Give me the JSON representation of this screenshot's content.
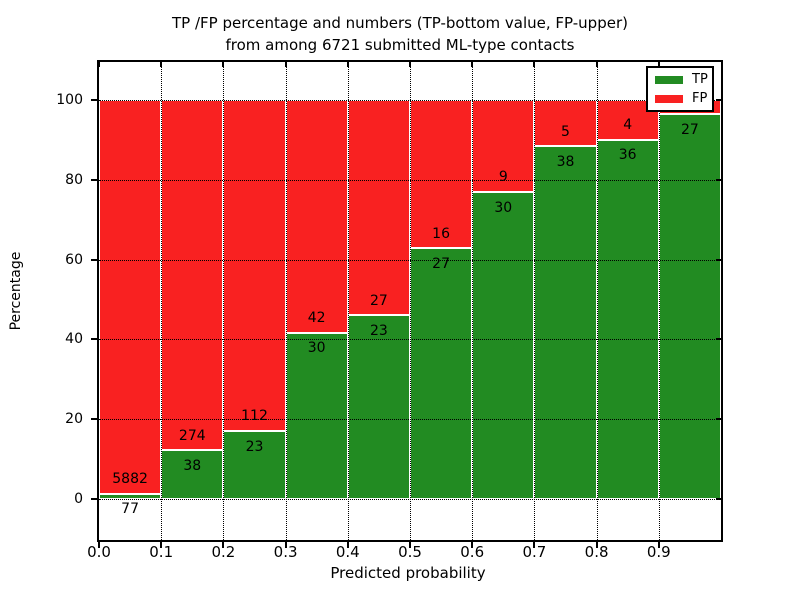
{
  "figure": {
    "title_line1": "TP /FP percentage and numbers (TP-bottom value, FP-upper)",
    "title_line2": "from among 6721 submitted ML-type contacts"
  },
  "axes": {
    "xlabel": "Predicted probability",
    "ylabel": "Percentage",
    "ytick_labels": [
      "0",
      "20",
      "40",
      "60",
      "80",
      "100"
    ],
    "ytick_values": [
      0,
      20,
      40,
      60,
      80,
      100
    ],
    "xtick_labels": [
      "0.0",
      "0.1",
      "0.2",
      "0.3",
      "0.4",
      "0.5",
      "0.6",
      "0.7",
      "0.8",
      "0.9"
    ],
    "xtick_values": [
      0.0,
      0.1,
      0.2,
      0.3,
      0.4,
      0.5,
      0.6,
      0.7,
      0.8,
      0.9
    ]
  },
  "legend": {
    "items": [
      {
        "label": "TP",
        "color": "#228b22"
      },
      {
        "label": "FP",
        "color": "#f92121"
      }
    ]
  },
  "chart_data": {
    "type": "bar",
    "stacked": true,
    "title": "TP /FP percentage and numbers (TP-bottom value, FP-upper) from among 6721 submitted ML-type contacts",
    "xlabel": "Predicted probability",
    "ylabel": "Percentage",
    "total_contacts": 6721,
    "bin_edges": [
      0.0,
      0.1,
      0.2,
      0.3,
      0.4,
      0.5,
      0.6,
      0.7,
      0.8,
      0.9,
      1.0
    ],
    "categories": [
      "0.0-0.1",
      "0.1-0.2",
      "0.2-0.3",
      "0.3-0.4",
      "0.4-0.5",
      "0.5-0.6",
      "0.6-0.7",
      "0.7-0.8",
      "0.8-0.9",
      "0.9-1.0"
    ],
    "series": [
      {
        "name": "TP",
        "color": "#228b22",
        "counts": [
          77,
          38,
          23,
          30,
          23,
          27,
          30,
          38,
          36,
          27
        ],
        "pct": [
          1.3,
          12.2,
          17.0,
          41.7,
          46.0,
          62.8,
          76.9,
          88.4,
          90.0,
          96.4
        ]
      },
      {
        "name": "FP",
        "color": "#f92121",
        "counts": [
          5882,
          274,
          112,
          42,
          27,
          16,
          9,
          5,
          4,
          null
        ],
        "pct": [
          98.7,
          87.8,
          83.0,
          58.3,
          54.0,
          37.2,
          23.1,
          11.6,
          10.0,
          3.6
        ]
      }
    ],
    "ylim": [
      -10.3,
      109.5
    ],
    "xlim": [
      0.0,
      1.0
    ],
    "yticks": [
      0,
      20,
      40,
      60,
      80,
      100
    ],
    "xticks": [
      0.0,
      0.1,
      0.2,
      0.3,
      0.4,
      0.5,
      0.6,
      0.7,
      0.8,
      0.9
    ],
    "grid": true,
    "legend_position": "upper right"
  }
}
